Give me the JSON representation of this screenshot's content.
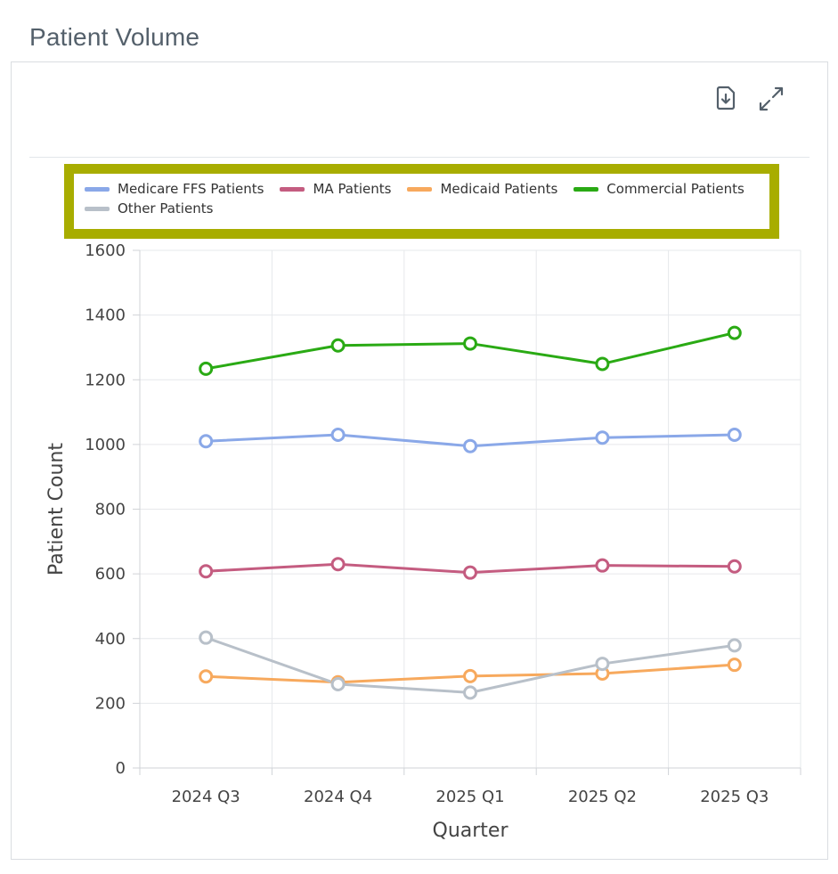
{
  "page": {
    "title": "Patient Volume"
  },
  "toolbar": {
    "download_icon": "file-download-icon",
    "expand_icon": "expand-arrows-icon"
  },
  "chart_data": {
    "type": "line",
    "categories": [
      "2024 Q3",
      "2024 Q4",
      "2025 Q1",
      "2025 Q2",
      "2025 Q3"
    ],
    "series": [
      {
        "name": "Medicare FFS Patients",
        "color": "#8aa8e8",
        "values": [
          1010,
          1030,
          995,
          1021,
          1030
        ]
      },
      {
        "name": "MA Patients",
        "color": "#c45c80",
        "values": [
          608,
          630,
          604,
          626,
          623
        ]
      },
      {
        "name": "Medicaid Patients",
        "color": "#f7a95d",
        "values": [
          283,
          265,
          284,
          292,
          319
        ]
      },
      {
        "name": "Commercial Patients",
        "color": "#2aaa14",
        "values": [
          1234,
          1306,
          1312,
          1249,
          1345
        ]
      },
      {
        "name": "Other Patients",
        "color": "#b8c0c9",
        "values": [
          403,
          259,
          233,
          322,
          379
        ]
      }
    ],
    "xlabel": "Quarter",
    "ylabel": "Patient Count",
    "ylim": [
      0,
      1600
    ],
    "yticks": [
      "0",
      "200",
      "400",
      "600",
      "800",
      "1000",
      "1200",
      "1400",
      "1600"
    ],
    "grid": true,
    "legend_position": "top"
  }
}
